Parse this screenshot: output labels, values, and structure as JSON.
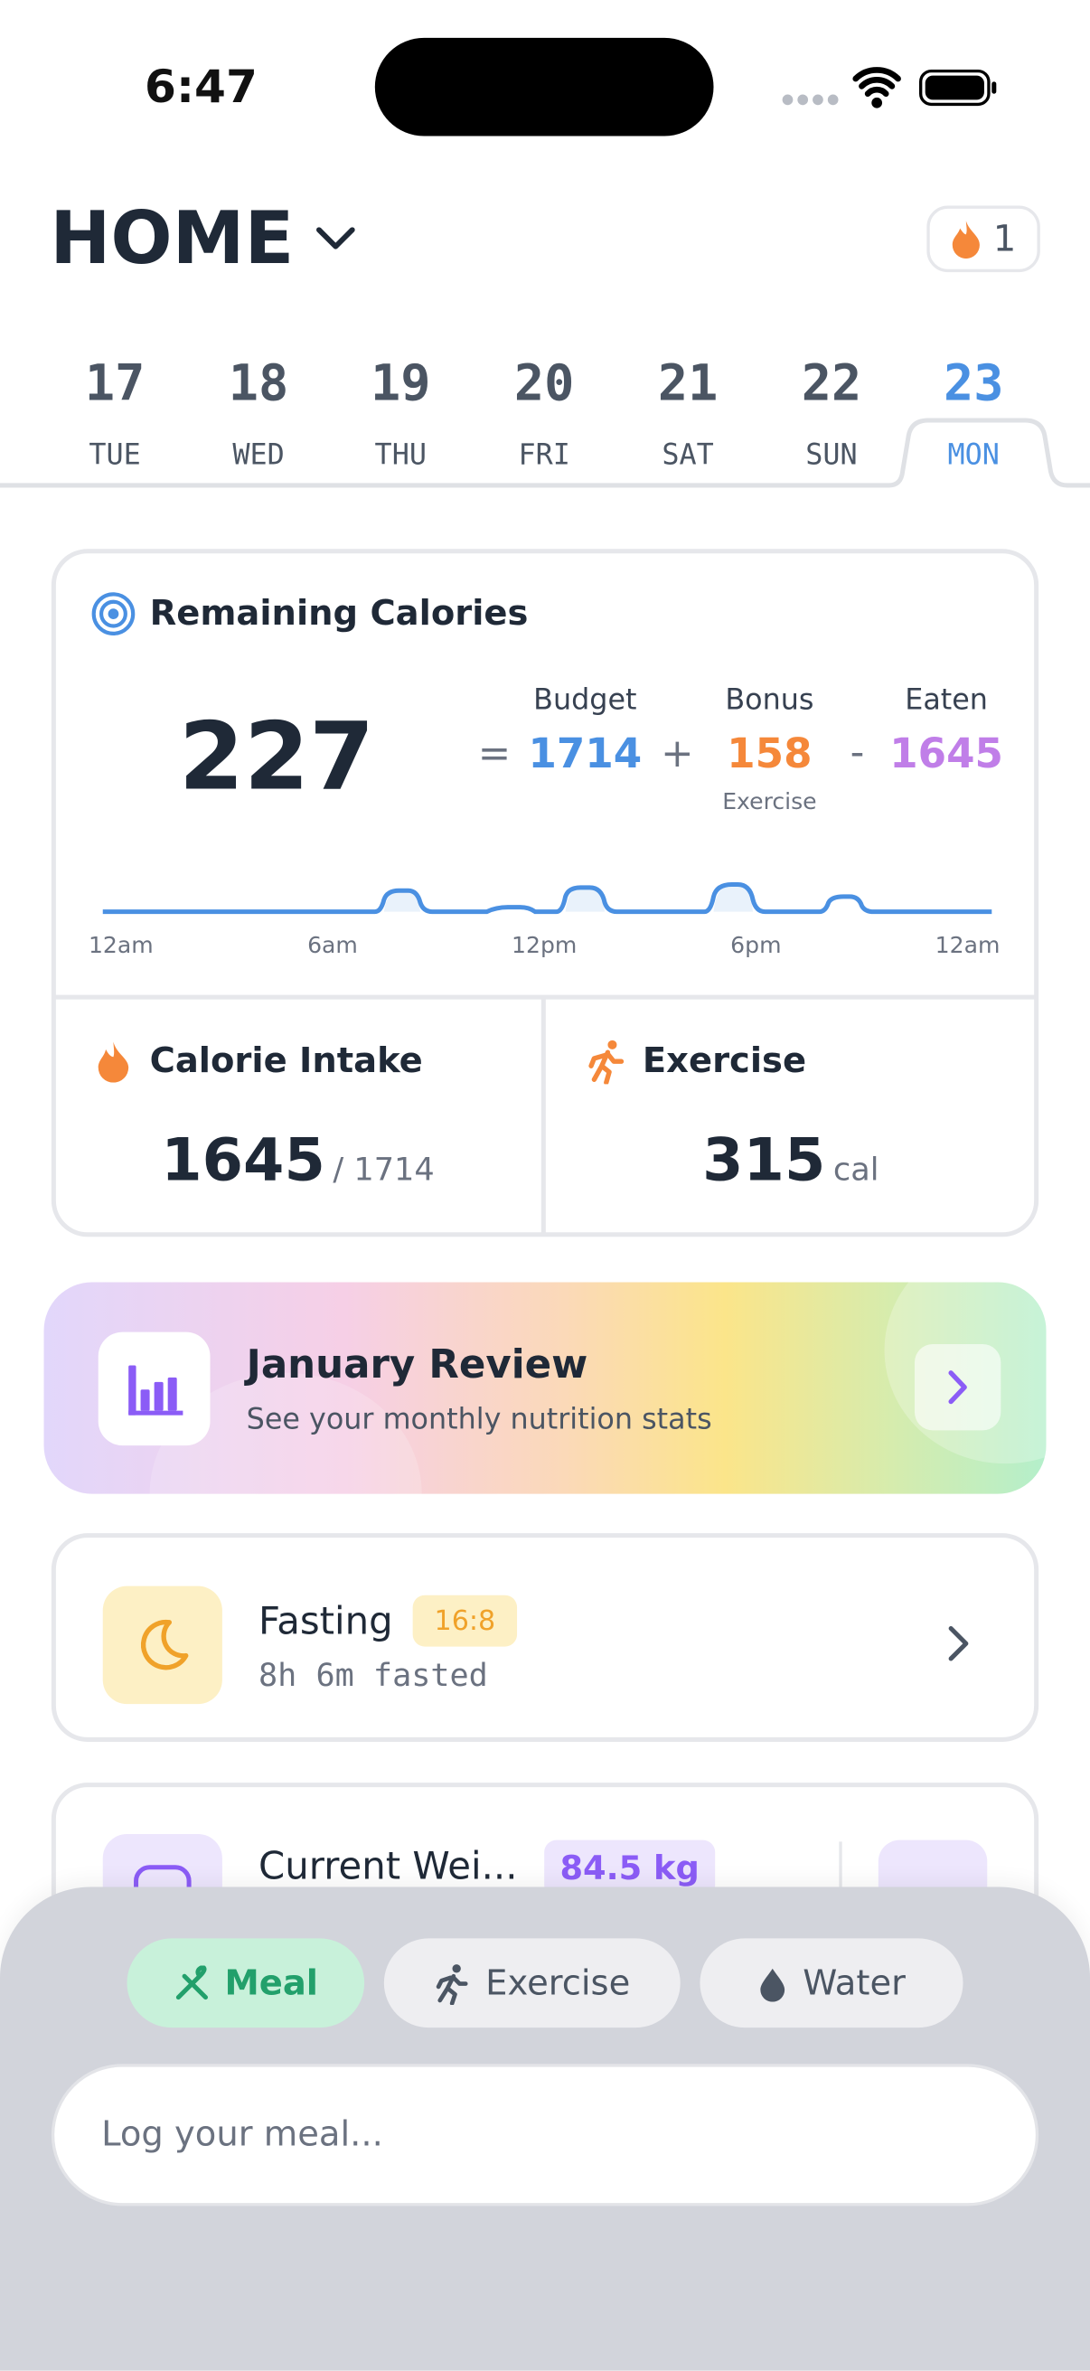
{
  "status": {
    "time": "6:47"
  },
  "header": {
    "title": "HOME",
    "streak": "1"
  },
  "days": [
    {
      "num": "17",
      "dow": "TUE"
    },
    {
      "num": "18",
      "dow": "WED"
    },
    {
      "num": "19",
      "dow": "THU"
    },
    {
      "num": "20",
      "dow": "FRI"
    },
    {
      "num": "21",
      "dow": "SAT"
    },
    {
      "num": "22",
      "dow": "SUN"
    },
    {
      "num": "23",
      "dow": "MON"
    }
  ],
  "remaining": {
    "title": "Remaining Calories",
    "value": "227",
    "equals": "=",
    "budget_label": "Budget",
    "budget": "1714",
    "plus": "+",
    "bonus_label": "Bonus",
    "bonus": "158",
    "bonus_sub": "Exercise",
    "minus": "-",
    "eaten_label": "Eaten",
    "eaten": "1645",
    "times": [
      "12am",
      "6am",
      "12pm",
      "6pm",
      "12am"
    ]
  },
  "intake": {
    "title": "Calorie Intake",
    "value": "1645",
    "of": "/ 1714"
  },
  "exercise": {
    "title": "Exercise",
    "value": "315",
    "unit": "cal"
  },
  "review": {
    "title": "January Review",
    "subtitle": "See your monthly nutrition stats"
  },
  "fasting": {
    "title": "Fasting",
    "badge": "16:8",
    "subtitle": "8h 6m fasted"
  },
  "weight": {
    "title": "Current Wei...",
    "badge": "84.5 kg"
  },
  "composer": {
    "tabs": [
      "Meal",
      "Exercise",
      "Water"
    ],
    "placeholder": "Log your meal..."
  }
}
